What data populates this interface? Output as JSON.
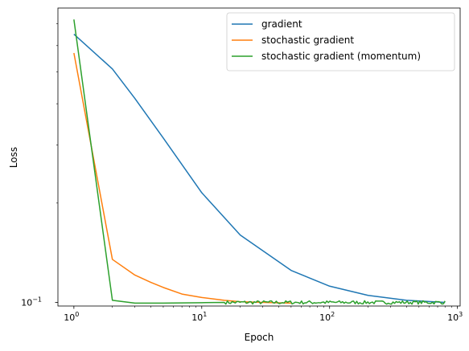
{
  "chart_data": {
    "type": "line",
    "xlabel": "Epoch",
    "ylabel": "Loss",
    "xscale": "log",
    "yscale": "log",
    "xlim": [
      0.75,
      1050
    ],
    "ylim": [
      0.0975,
      0.78
    ],
    "x_ticks": [
      {
        "value": 1,
        "base": "10",
        "exp": "0"
      },
      {
        "value": 10,
        "base": "10",
        "exp": "1"
      },
      {
        "value": 100,
        "base": "10",
        "exp": "2"
      },
      {
        "value": 1000,
        "base": "10",
        "exp": "3"
      }
    ],
    "y_ticks": [
      {
        "value": 0.1,
        "base": "10",
        "exp": "−1"
      }
    ],
    "legend_position": "top-right",
    "grid": false,
    "series": [
      {
        "name": "gradient",
        "color": "#1f77b4",
        "points": [
          [
            1,
            0.65
          ],
          [
            2,
            0.51
          ],
          [
            3,
            0.415
          ],
          [
            5,
            0.315
          ],
          [
            10,
            0.215
          ],
          [
            20,
            0.16
          ],
          [
            50,
            0.125
          ],
          [
            100,
            0.112
          ],
          [
            200,
            0.105
          ],
          [
            400,
            0.1015
          ],
          [
            800,
            0.1
          ]
        ]
      },
      {
        "name": "stochastic gradient",
        "color": "#ff7f0e",
        "points": [
          [
            1,
            0.57
          ],
          [
            2,
            0.135
          ],
          [
            3,
            0.121
          ],
          [
            4,
            0.115
          ],
          [
            5,
            0.111
          ],
          [
            7,
            0.106
          ],
          [
            10,
            0.1035
          ],
          [
            15,
            0.1015
          ],
          [
            20,
            0.1005
          ],
          [
            30,
            0.1
          ],
          [
            50,
            0.0995
          ]
        ]
      },
      {
        "name": "stochastic gradient (momentum)",
        "color": "#2ca02c",
        "noisy_from": 15,
        "noise_amplitude": 0.0012,
        "points": [
          [
            1,
            0.72
          ],
          [
            2,
            0.1015
          ],
          [
            3,
            0.0995
          ],
          [
            5,
            0.0995
          ],
          [
            10,
            0.0998
          ],
          [
            15,
            0.1
          ],
          [
            800,
            0.1
          ]
        ]
      }
    ]
  }
}
